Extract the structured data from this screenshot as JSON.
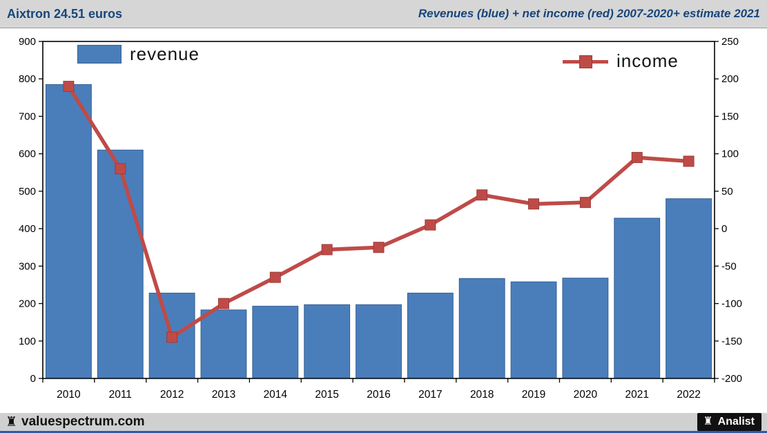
{
  "header": {
    "left_title": "Aixtron 24.51 euros",
    "right_title": "Revenues (blue) + net income (red) 2007-2020+ estimate 2021"
  },
  "legend": {
    "revenue_label": "revenue",
    "income_label": "income"
  },
  "footer": {
    "site": "valuespectrum.com",
    "brand": "Analist",
    "rook_icon": "♜"
  },
  "colors": {
    "bar_fill": "#4a7ebb",
    "bar_border": "#356092",
    "line": "#be4b48",
    "marker_border": "#9e3b39",
    "header_text": "#17457c",
    "plot_border": "#000000"
  },
  "chart_data": {
    "type": "bar+line",
    "title": "Revenues (blue) + net income (red) 2007-2020+ estimate 2021",
    "categories": [
      "2010",
      "2011",
      "2012",
      "2013",
      "2014",
      "2015",
      "2016",
      "2017",
      "2018",
      "2019",
      "2020",
      "2021",
      "2022"
    ],
    "series": [
      {
        "name": "revenue",
        "type": "bar",
        "axis": "left",
        "values": [
          785,
          610,
          228,
          183,
          193,
          197,
          197,
          228,
          267,
          258,
          268,
          428,
          480
        ]
      },
      {
        "name": "income",
        "type": "line",
        "axis": "right",
        "values": [
          190,
          80,
          -145,
          -100,
          -65,
          -28,
          -25,
          5,
          45,
          33,
          35,
          95,
          90
        ]
      }
    ],
    "left_axis": {
      "min": 0,
      "max": 900,
      "step": 100
    },
    "right_axis": {
      "min": -200,
      "max": 250,
      "step": 50
    },
    "grid": false,
    "legend_position": "inside-top"
  }
}
